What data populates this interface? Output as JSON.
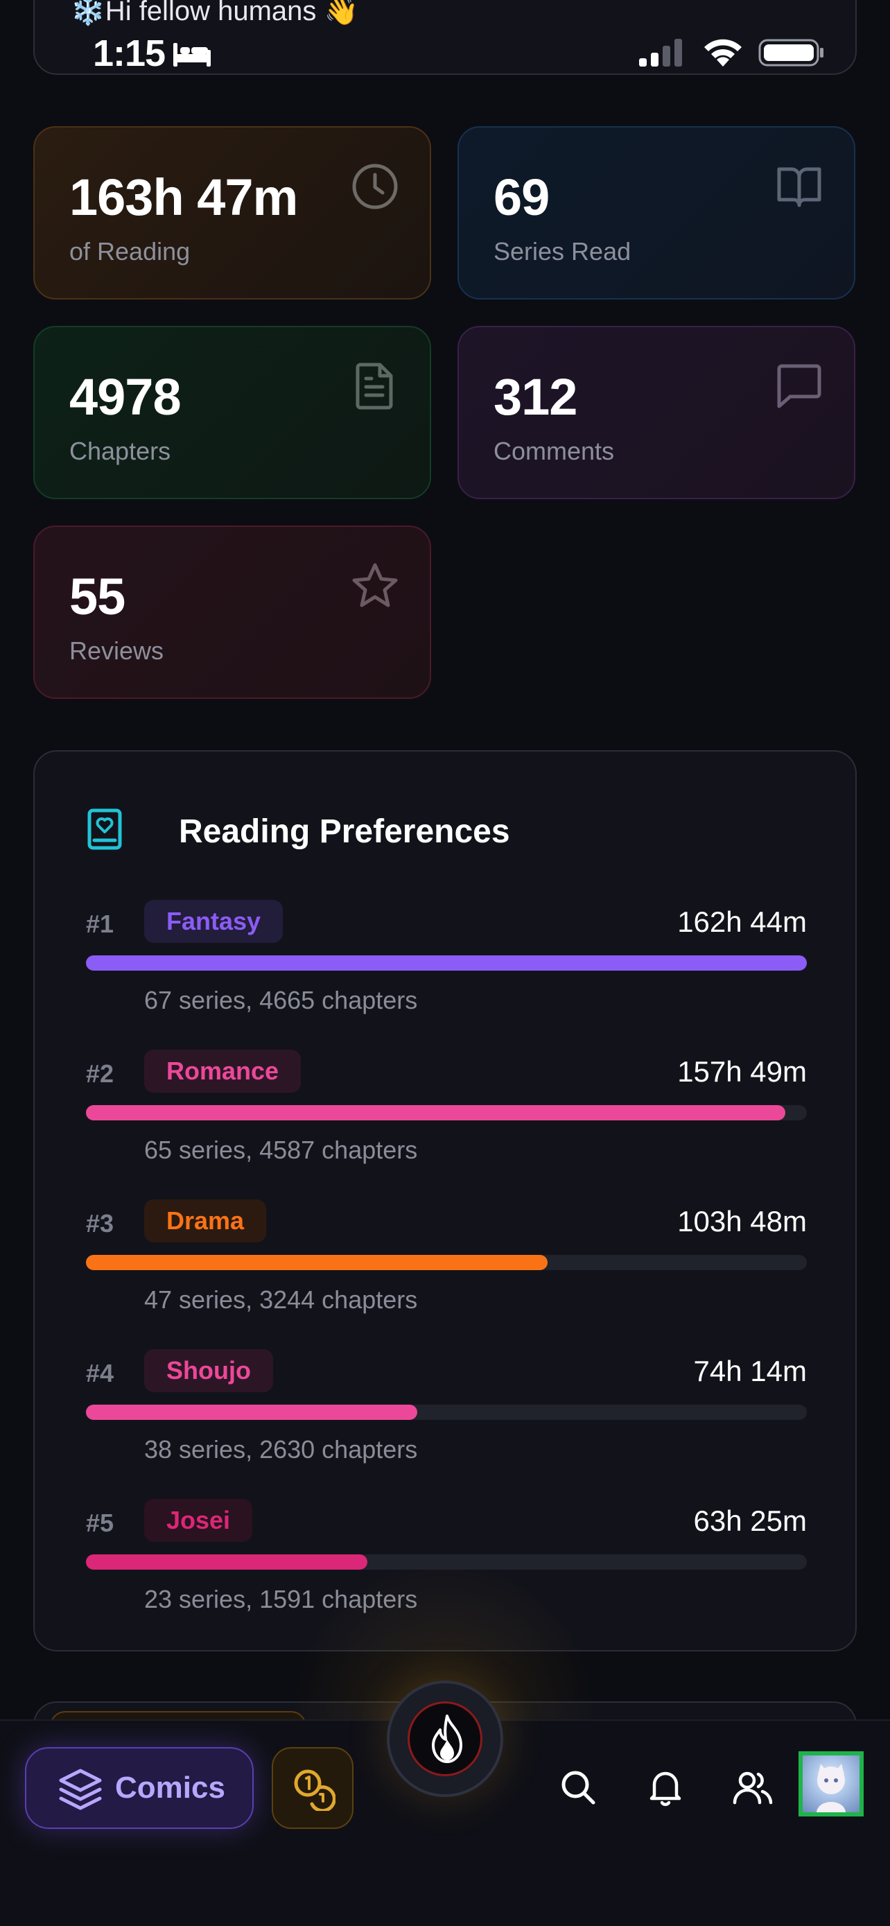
{
  "header": {
    "greeting": "❄️Hi fellow humans 👋"
  },
  "status_bar": {
    "time": "1:15",
    "icons": [
      "bed-icon",
      "signal-icon",
      "wifi-icon",
      "battery-icon"
    ]
  },
  "stats": [
    {
      "value": "163h 47m",
      "label": "of Reading",
      "icon": "clock-icon",
      "accent": "#4b3214"
    },
    {
      "value": "69",
      "label": "Series Read",
      "icon": "book-open-icon",
      "accent": "#163150"
    },
    {
      "value": "4978",
      "label": "Chapters",
      "icon": "document-icon",
      "accent": "#123d24"
    },
    {
      "value": "312",
      "label": "Comments",
      "icon": "comment-icon",
      "accent": "#3a1f4a"
    },
    {
      "value": "55",
      "label": "Reviews",
      "icon": "star-icon",
      "accent": "#4a1a2a"
    }
  ],
  "preferences": {
    "title": "Reading Preferences",
    "icon": "book-heart-icon",
    "genres": [
      {
        "rank": "#1",
        "name": "Fantasy",
        "time": "162h 44m",
        "meta": "67 series, 4665 chapters",
        "share": 1.0,
        "color": "#8b5cf6",
        "pill_bg": "#221d3a"
      },
      {
        "rank": "#2",
        "name": "Romance",
        "time": "157h 49m",
        "meta": "65 series, 4587 chapters",
        "share": 0.97,
        "color": "#ec4899",
        "pill_bg": "#2c1626"
      },
      {
        "rank": "#3",
        "name": "Drama",
        "time": "103h 48m",
        "meta": "47 series, 3244 chapters",
        "share": 0.64,
        "color": "#f97316",
        "pill_bg": "#2c1a10"
      },
      {
        "rank": "#4",
        "name": "Shoujo",
        "time": "74h 14m",
        "meta": "38 series, 2630 chapters",
        "share": 0.46,
        "color": "#ec4899",
        "pill_bg": "#2c1626"
      },
      {
        "rank": "#5",
        "name": "Josei",
        "time": "63h 25m",
        "meta": "23 series, 1591 chapters",
        "share": 0.39,
        "color": "#db2777",
        "pill_bg": "#2a1220"
      }
    ]
  },
  "bottom_nav": {
    "comics_label": "Comics",
    "icons": [
      "layers-icon",
      "coins-icon",
      "fire-icon",
      "search-icon",
      "bell-icon",
      "users-icon",
      "avatar"
    ]
  }
}
